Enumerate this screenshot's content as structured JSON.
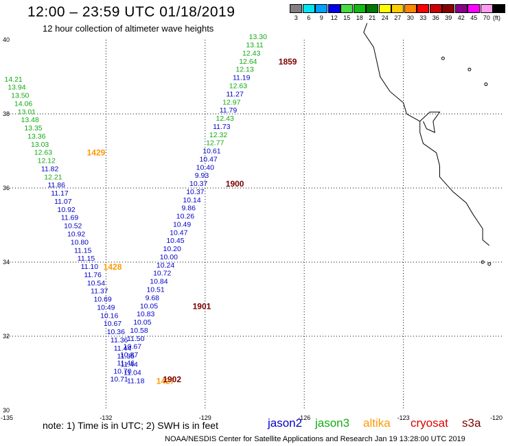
{
  "header": {
    "title": "12:00 – 23:59 UTC 01/18/2019",
    "subtitle": "12 hour collection of altimeter wave heights"
  },
  "colorbar": {
    "unit": "(ft)",
    "items": [
      {
        "label": "3",
        "color": "#808080"
      },
      {
        "label": "6",
        "color": "#00e5ee"
      },
      {
        "label": "9",
        "color": "#00a0ff"
      },
      {
        "label": "12",
        "color": "#0000e8"
      },
      {
        "label": "15",
        "color": "#44dd44"
      },
      {
        "label": "18",
        "color": "#11bb11"
      },
      {
        "label": "21",
        "color": "#007700"
      },
      {
        "label": "24",
        "color": "#ffff00"
      },
      {
        "label": "27",
        "color": "#ffcc00"
      },
      {
        "label": "30",
        "color": "#ff8800"
      },
      {
        "label": "33",
        "color": "#ff0000"
      },
      {
        "label": "36",
        "color": "#cc0000"
      },
      {
        "label": "39",
        "color": "#880000"
      },
      {
        "label": "42",
        "color": "#880088"
      },
      {
        "label": "45",
        "color": "#ff00ff"
      },
      {
        "label": "70",
        "color": "#ff99ee"
      },
      {
        "label": "",
        "color": "#000000"
      }
    ]
  },
  "axes": {
    "x_ticks": [
      "-135",
      "-132",
      "-129",
      "-126",
      "-123",
      "-120"
    ],
    "y_ticks": [
      "40",
      "38",
      "36",
      "34",
      "32",
      "30"
    ],
    "x_range": [
      -135,
      -120
    ],
    "y_range": [
      30,
      40
    ]
  },
  "colors": {
    "jason2": "#0000c8",
    "jason3": "#11aa11",
    "altika": "#ff9900",
    "cryosat": "#dd0000",
    "s3a": "#7a0000",
    "time_orange": "#ff9900",
    "time_dark": "#7a0000"
  },
  "tracks": [
    {
      "name": "track-west",
      "points": [
        {
          "lon": -134.8,
          "lat": 38.93,
          "v": "14.21",
          "c": "g"
        },
        {
          "lon": -134.7,
          "lat": 38.71,
          "v": "13.94",
          "c": "g"
        },
        {
          "lon": -134.6,
          "lat": 38.49,
          "v": "13.50",
          "c": "g"
        },
        {
          "lon": -134.5,
          "lat": 38.27,
          "v": "14.06",
          "c": "g"
        },
        {
          "lon": -134.4,
          "lat": 38.05,
          "v": "13.01",
          "c": "g"
        },
        {
          "lon": -134.3,
          "lat": 37.83,
          "v": "13.48",
          "c": "g"
        },
        {
          "lon": -134.2,
          "lat": 37.61,
          "v": "13.35",
          "c": "g"
        },
        {
          "lon": -134.1,
          "lat": 37.39,
          "v": "13.36",
          "c": "g"
        },
        {
          "lon": -134.0,
          "lat": 37.17,
          "v": "13.03",
          "c": "g"
        },
        {
          "lon": -133.9,
          "lat": 36.95,
          "v": "12.63",
          "c": "g"
        },
        {
          "lon": -133.8,
          "lat": 36.73,
          "v": "12.12",
          "c": "g"
        },
        {
          "lon": -133.7,
          "lat": 36.51,
          "v": "11.82",
          "c": "b"
        },
        {
          "lon": -133.6,
          "lat": 36.29,
          "v": "12.21",
          "c": "g"
        },
        {
          "lon": -133.5,
          "lat": 36.07,
          "v": "11.86",
          "c": "b"
        },
        {
          "lon": -133.4,
          "lat": 35.85,
          "v": "11.17",
          "c": "b"
        },
        {
          "lon": -133.3,
          "lat": 35.63,
          "v": "11.07",
          "c": "b"
        },
        {
          "lon": -133.2,
          "lat": 35.41,
          "v": "10.92",
          "c": "b"
        },
        {
          "lon": -133.1,
          "lat": 35.19,
          "v": "11.69",
          "c": "b"
        },
        {
          "lon": -133.0,
          "lat": 34.97,
          "v": "10.52",
          "c": "b"
        },
        {
          "lon": -132.9,
          "lat": 34.75,
          "v": "10.92",
          "c": "b"
        },
        {
          "lon": -132.8,
          "lat": 34.53,
          "v": "10.80",
          "c": "b"
        },
        {
          "lon": -132.7,
          "lat": 34.31,
          "v": "11.15",
          "c": "b"
        },
        {
          "lon": -132.6,
          "lat": 34.09,
          "v": "11.15",
          "c": "b"
        },
        {
          "lon": -132.5,
          "lat": 33.87,
          "v": "11.10",
          "c": "b"
        },
        {
          "lon": -132.4,
          "lat": 33.65,
          "v": "11.76",
          "c": "b"
        },
        {
          "lon": -132.3,
          "lat": 33.43,
          "v": "10.54",
          "c": "b"
        },
        {
          "lon": -132.2,
          "lat": 33.21,
          "v": "11.37",
          "c": "b"
        },
        {
          "lon": -132.1,
          "lat": 32.99,
          "v": "10.69",
          "c": "b"
        },
        {
          "lon": -132.0,
          "lat": 32.77,
          "v": "10.49",
          "c": "b"
        },
        {
          "lon": -131.9,
          "lat": 32.55,
          "v": "10.16",
          "c": "b"
        },
        {
          "lon": -131.8,
          "lat": 32.33,
          "v": "10.67",
          "c": "b"
        },
        {
          "lon": -131.7,
          "lat": 32.11,
          "v": "10.36",
          "c": "b"
        },
        {
          "lon": -131.6,
          "lat": 31.89,
          "v": "11.36",
          "c": "b"
        },
        {
          "lon": -131.5,
          "lat": 31.67,
          "v": "11.44",
          "c": "b"
        },
        {
          "lon": -131.4,
          "lat": 31.45,
          "v": "11.35",
          "c": "b"
        },
        {
          "lon": -131.3,
          "lat": 31.23,
          "v": "11.44",
          "c": "b"
        },
        {
          "lon": -131.2,
          "lat": 31.01,
          "v": "11.04",
          "c": "b"
        },
        {
          "lon": -131.1,
          "lat": 30.79,
          "v": "11.18",
          "c": "b"
        }
      ],
      "times": [
        {
          "lon": -132.3,
          "lat": 36.95,
          "t": "1429",
          "c": "o"
        },
        {
          "lon": -131.8,
          "lat": 33.87,
          "t": "1428",
          "c": "o"
        },
        {
          "lon": -130.2,
          "lat": 30.79,
          "t": "1427",
          "c": "o"
        }
      ]
    },
    {
      "name": "track-east",
      "points": [
        {
          "lon": -127.4,
          "lat": 40.07,
          "v": "13.30",
          "c": "g"
        },
        {
          "lon": -127.5,
          "lat": 39.85,
          "v": "13.11",
          "c": "g"
        },
        {
          "lon": -127.6,
          "lat": 39.63,
          "v": "12.43",
          "c": "g"
        },
        {
          "lon": -127.7,
          "lat": 39.41,
          "v": "12.64",
          "c": "g"
        },
        {
          "lon": -127.8,
          "lat": 39.19,
          "v": "12.13",
          "c": "g"
        },
        {
          "lon": -127.9,
          "lat": 38.97,
          "v": "11.19",
          "c": "b"
        },
        {
          "lon": -128.0,
          "lat": 38.75,
          "v": "12.63",
          "c": "g"
        },
        {
          "lon": -128.1,
          "lat": 38.53,
          "v": "11.27",
          "c": "b"
        },
        {
          "lon": -128.2,
          "lat": 38.31,
          "v": "12.97",
          "c": "g"
        },
        {
          "lon": -128.3,
          "lat": 38.09,
          "v": "11.79",
          "c": "b"
        },
        {
          "lon": -128.4,
          "lat": 37.87,
          "v": "12.43",
          "c": "g"
        },
        {
          "lon": -128.5,
          "lat": 37.65,
          "v": "11.73",
          "c": "b"
        },
        {
          "lon": -128.6,
          "lat": 37.43,
          "v": "12.32",
          "c": "g"
        },
        {
          "lon": -128.7,
          "lat": 37.21,
          "v": "12.77",
          "c": "g"
        },
        {
          "lon": -128.8,
          "lat": 36.99,
          "v": "10.61",
          "c": "b"
        },
        {
          "lon": -128.9,
          "lat": 36.77,
          "v": "10.47",
          "c": "b"
        },
        {
          "lon": -129.0,
          "lat": 36.55,
          "v": "10.40",
          "c": "b"
        },
        {
          "lon": -129.1,
          "lat": 36.33,
          "v": "9.93",
          "c": "b"
        },
        {
          "lon": -129.2,
          "lat": 36.11,
          "v": "10.37",
          "c": "b"
        },
        {
          "lon": -129.3,
          "lat": 35.89,
          "v": "10.37",
          "c": "b"
        },
        {
          "lon": -129.4,
          "lat": 35.67,
          "v": "10.14",
          "c": "b"
        },
        {
          "lon": -129.5,
          "lat": 35.45,
          "v": "9.86",
          "c": "b"
        },
        {
          "lon": -129.6,
          "lat": 35.23,
          "v": "10.26",
          "c": "b"
        },
        {
          "lon": -129.7,
          "lat": 35.01,
          "v": "10.49",
          "c": "b"
        },
        {
          "lon": -129.8,
          "lat": 34.79,
          "v": "10.47",
          "c": "b"
        },
        {
          "lon": -129.9,
          "lat": 34.57,
          "v": "10.45",
          "c": "b"
        },
        {
          "lon": -130.0,
          "lat": 34.35,
          "v": "10.20",
          "c": "b"
        },
        {
          "lon": -130.1,
          "lat": 34.13,
          "v": "10.00",
          "c": "b"
        },
        {
          "lon": -130.2,
          "lat": 33.91,
          "v": "10.24",
          "c": "b"
        },
        {
          "lon": -130.3,
          "lat": 33.69,
          "v": "10.72",
          "c": "b"
        },
        {
          "lon": -130.4,
          "lat": 33.47,
          "v": "10.84",
          "c": "b"
        },
        {
          "lon": -130.5,
          "lat": 33.25,
          "v": "10.51",
          "c": "b"
        },
        {
          "lon": -130.6,
          "lat": 33.03,
          "v": "9.68",
          "c": "b"
        },
        {
          "lon": -130.7,
          "lat": 32.81,
          "v": "10.05",
          "c": "b"
        },
        {
          "lon": -130.8,
          "lat": 32.59,
          "v": "10.83",
          "c": "b"
        },
        {
          "lon": -130.9,
          "lat": 32.37,
          "v": "10.05",
          "c": "b"
        },
        {
          "lon": -131.0,
          "lat": 32.15,
          "v": "10.58",
          "c": "b"
        },
        {
          "lon": -131.1,
          "lat": 31.93,
          "v": "11.50",
          "c": "b"
        },
        {
          "lon": -131.2,
          "lat": 31.71,
          "v": "10.67",
          "c": "b"
        },
        {
          "lon": -131.3,
          "lat": 31.49,
          "v": "10.87",
          "c": "b"
        },
        {
          "lon": -131.4,
          "lat": 31.27,
          "v": "11.46",
          "c": "b"
        },
        {
          "lon": -131.5,
          "lat": 31.05,
          "v": "10.70",
          "c": "b"
        },
        {
          "lon": -131.6,
          "lat": 30.83,
          "v": "10.71",
          "c": "b"
        }
      ],
      "times": [
        {
          "lon": -126.5,
          "lat": 39.41,
          "t": "1859",
          "c": "d"
        },
        {
          "lon": -128.1,
          "lat": 36.11,
          "t": "1900",
          "c": "d"
        },
        {
          "lon": -129.1,
          "lat": 32.81,
          "t": "1901",
          "c": "d"
        },
        {
          "lon": -130.0,
          "lat": 30.83,
          "t": "1902",
          "c": "d"
        }
      ]
    }
  ],
  "footer": {
    "note": "note: 1) Time is in UTC; 2) SWH is in feet",
    "satellites": [
      {
        "label": "jason2",
        "color": "#0000c8"
      },
      {
        "label": "jason3",
        "color": "#11aa11"
      },
      {
        "label": "altika",
        "color": "#ff9900"
      },
      {
        "label": "cryosat",
        "color": "#dd0000"
      },
      {
        "label": "s3a",
        "color": "#7a0000"
      }
    ],
    "credit": "NOAA/NESDIS Center for Satellite Applications and Research   Jan 19 13:28:00 UTC 2019"
  }
}
